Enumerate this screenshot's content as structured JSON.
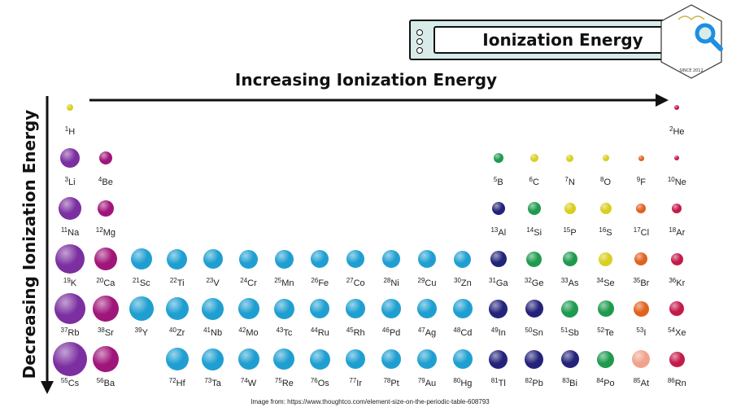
{
  "title": "Ionization Energy",
  "horizontal_arrow_label": "Increasing Ionization Energy",
  "vertical_arrow_label": "Decreasing Ionization Energy",
  "credit": "Image from: https://www.thoughtco.com/element-size-on-the-periodic-table-608793",
  "logo_text": "SINCE 2012",
  "colors": {
    "purple": "#7b2fa0",
    "magenta": "#a0157a",
    "cyan": "#1f9fd1",
    "navy": "#24237a",
    "green": "#1e9a4e",
    "yellow": "#d8cf1f",
    "orange": "#e0621f",
    "crimson": "#c41a4a",
    "peach": "#f0a38c",
    "banner_bg": "#d7ece9",
    "magnifier": "#1f8fe0"
  },
  "elements": [
    {
      "n": "1",
      "s": "H",
      "col": 1,
      "row": 1,
      "r": 4,
      "color": "yellow"
    },
    {
      "n": "2",
      "s": "He",
      "col": 18,
      "row": 1,
      "r": 3,
      "color": "crimson"
    },
    {
      "n": "3",
      "s": "Li",
      "col": 1,
      "row": 2,
      "r": 12,
      "color": "purple"
    },
    {
      "n": "4",
      "s": "Be",
      "col": 2,
      "row": 2,
      "r": 8,
      "color": "magenta"
    },
    {
      "n": "5",
      "s": "B",
      "col": 13,
      "row": 2,
      "r": 6,
      "color": "green"
    },
    {
      "n": "6",
      "s": "C",
      "col": 14,
      "row": 2,
      "r": 5,
      "color": "yellow"
    },
    {
      "n": "7",
      "s": "N",
      "col": 15,
      "row": 2,
      "r": 4.5,
      "color": "yellow"
    },
    {
      "n": "8",
      "s": "O",
      "col": 16,
      "row": 2,
      "r": 4,
      "color": "yellow"
    },
    {
      "n": "9",
      "s": "F",
      "col": 17,
      "row": 2,
      "r": 3.5,
      "color": "orange"
    },
    {
      "n": "10",
      "s": "Ne",
      "col": 18,
      "row": 2,
      "r": 3,
      "color": "crimson"
    },
    {
      "n": "11",
      "s": "Na",
      "col": 1,
      "row": 3,
      "r": 14,
      "color": "purple"
    },
    {
      "n": "12",
      "s": "Mg",
      "col": 2,
      "row": 3,
      "r": 10,
      "color": "magenta"
    },
    {
      "n": "13",
      "s": "Al",
      "col": 13,
      "row": 3,
      "r": 8,
      "color": "navy"
    },
    {
      "n": "14",
      "s": "Si",
      "col": 14,
      "row": 3,
      "r": 8,
      "color": "green"
    },
    {
      "n": "15",
      "s": "P",
      "col": 15,
      "row": 3,
      "r": 7,
      "color": "yellow"
    },
    {
      "n": "16",
      "s": "S",
      "col": 16,
      "row": 3,
      "r": 7,
      "color": "yellow"
    },
    {
      "n": "17",
      "s": "Cl",
      "col": 17,
      "row": 3,
      "r": 6,
      "color": "orange"
    },
    {
      "n": "18",
      "s": "Ar",
      "col": 18,
      "row": 3,
      "r": 6,
      "color": "crimson"
    },
    {
      "n": "19",
      "s": "K",
      "col": 1,
      "row": 4,
      "r": 18,
      "color": "purple"
    },
    {
      "n": "20",
      "s": "Ca",
      "col": 2,
      "row": 4,
      "r": 14,
      "color": "magenta"
    },
    {
      "n": "21",
      "s": "Sc",
      "col": 3,
      "row": 4,
      "r": 13,
      "color": "cyan"
    },
    {
      "n": "22",
      "s": "Ti",
      "col": 4,
      "row": 4,
      "r": 12.5,
      "color": "cyan"
    },
    {
      "n": "23",
      "s": "V",
      "col": 5,
      "row": 4,
      "r": 12,
      "color": "cyan"
    },
    {
      "n": "24",
      "s": "Cr",
      "col": 6,
      "row": 4,
      "r": 11.5,
      "color": "cyan"
    },
    {
      "n": "25",
      "s": "Mn",
      "col": 7,
      "row": 4,
      "r": 11.5,
      "color": "cyan"
    },
    {
      "n": "26",
      "s": "Fe",
      "col": 8,
      "row": 4,
      "r": 11,
      "color": "cyan"
    },
    {
      "n": "27",
      "s": "Co",
      "col": 9,
      "row": 4,
      "r": 11,
      "color": "cyan"
    },
    {
      "n": "28",
      "s": "Ni",
      "col": 10,
      "row": 4,
      "r": 11,
      "color": "cyan"
    },
    {
      "n": "29",
      "s": "Cu",
      "col": 11,
      "row": 4,
      "r": 11,
      "color": "cyan"
    },
    {
      "n": "30",
      "s": "Zn",
      "col": 12,
      "row": 4,
      "r": 10.5,
      "color": "cyan"
    },
    {
      "n": "31",
      "s": "Ga",
      "col": 13,
      "row": 4,
      "r": 10,
      "color": "navy"
    },
    {
      "n": "32",
      "s": "Ge",
      "col": 14,
      "row": 4,
      "r": 9.5,
      "color": "green"
    },
    {
      "n": "33",
      "s": "As",
      "col": 15,
      "row": 4,
      "r": 9,
      "color": "green"
    },
    {
      "n": "34",
      "s": "Se",
      "col": 16,
      "row": 4,
      "r": 8.5,
      "color": "yellow"
    },
    {
      "n": "35",
      "s": "Br",
      "col": 17,
      "row": 4,
      "r": 8,
      "color": "orange"
    },
    {
      "n": "36",
      "s": "Kr",
      "col": 18,
      "row": 4,
      "r": 7.5,
      "color": "crimson"
    },
    {
      "n": "37",
      "s": "Rb",
      "col": 1,
      "row": 5,
      "r": 19,
      "color": "purple"
    },
    {
      "n": "38",
      "s": "Sr",
      "col": 2,
      "row": 5,
      "r": 16,
      "color": "magenta"
    },
    {
      "n": "39",
      "s": "Y",
      "col": 3,
      "row": 5,
      "r": 15,
      "color": "cyan"
    },
    {
      "n": "40",
      "s": "Zr",
      "col": 4,
      "row": 5,
      "r": 14,
      "color": "cyan"
    },
    {
      "n": "41",
      "s": "Nb",
      "col": 5,
      "row": 5,
      "r": 13.5,
      "color": "cyan"
    },
    {
      "n": "42",
      "s": "Mo",
      "col": 6,
      "row": 5,
      "r": 13,
      "color": "cyan"
    },
    {
      "n": "43",
      "s": "Tc",
      "col": 7,
      "row": 5,
      "r": 12.5,
      "color": "cyan"
    },
    {
      "n": "44",
      "s": "Ru",
      "col": 8,
      "row": 5,
      "r": 12,
      "color": "cyan"
    },
    {
      "n": "45",
      "s": "Rh",
      "col": 9,
      "row": 5,
      "r": 12,
      "color": "cyan"
    },
    {
      "n": "46",
      "s": "Pd",
      "col": 10,
      "row": 5,
      "r": 12,
      "color": "cyan"
    },
    {
      "n": "47",
      "s": "Ag",
      "col": 11,
      "row": 5,
      "r": 12,
      "color": "cyan"
    },
    {
      "n": "48",
      "s": "Cd",
      "col": 12,
      "row": 5,
      "r": 12,
      "color": "cyan"
    },
    {
      "n": "49",
      "s": "In",
      "col": 13,
      "row": 5,
      "r": 11.5,
      "color": "navy"
    },
    {
      "n": "50",
      "s": "Sn",
      "col": 14,
      "row": 5,
      "r": 11,
      "color": "navy"
    },
    {
      "n": "51",
      "s": "Sb",
      "col": 15,
      "row": 5,
      "r": 10.5,
      "color": "green"
    },
    {
      "n": "52",
      "s": "Te",
      "col": 16,
      "row": 5,
      "r": 10,
      "color": "green"
    },
    {
      "n": "53",
      "s": "I",
      "col": 17,
      "row": 5,
      "r": 9.5,
      "color": "orange"
    },
    {
      "n": "54",
      "s": "Xe",
      "col": 18,
      "row": 5,
      "r": 9,
      "color": "crimson"
    },
    {
      "n": "55",
      "s": "Cs",
      "col": 1,
      "row": 6,
      "r": 21,
      "color": "purple"
    },
    {
      "n": "56",
      "s": "Ba",
      "col": 2,
      "row": 6,
      "r": 16,
      "color": "magenta"
    },
    {
      "n": "72",
      "s": "Hf",
      "col": 4,
      "row": 6,
      "r": 14,
      "color": "cyan"
    },
    {
      "n": "73",
      "s": "Ta",
      "col": 5,
      "row": 6,
      "r": 13.5,
      "color": "cyan"
    },
    {
      "n": "74",
      "s": "W",
      "col": 6,
      "row": 6,
      "r": 13,
      "color": "cyan"
    },
    {
      "n": "75",
      "s": "Re",
      "col": 7,
      "row": 6,
      "r": 13,
      "color": "cyan"
    },
    {
      "n": "76",
      "s": "Os",
      "col": 8,
      "row": 6,
      "r": 12.5,
      "color": "cyan"
    },
    {
      "n": "77",
      "s": "Ir",
      "col": 9,
      "row": 6,
      "r": 12,
      "color": "cyan"
    },
    {
      "n": "78",
      "s": "Pt",
      "col": 10,
      "row": 6,
      "r": 12,
      "color": "cyan"
    },
    {
      "n": "79",
      "s": "Au",
      "col": 11,
      "row": 6,
      "r": 12,
      "color": "cyan"
    },
    {
      "n": "80",
      "s": "Hg",
      "col": 12,
      "row": 6,
      "r": 12,
      "color": "cyan"
    },
    {
      "n": "81",
      "s": "Tl",
      "col": 13,
      "row": 6,
      "r": 11.5,
      "color": "navy"
    },
    {
      "n": "82",
      "s": "Pb",
      "col": 14,
      "row": 6,
      "r": 11.5,
      "color": "navy"
    },
    {
      "n": "83",
      "s": "Bi",
      "col": 15,
      "row": 6,
      "r": 11,
      "color": "navy"
    },
    {
      "n": "84",
      "s": "Po",
      "col": 16,
      "row": 6,
      "r": 10.5,
      "color": "green"
    },
    {
      "n": "85",
      "s": "At",
      "col": 17,
      "row": 6,
      "r": 11,
      "color": "peach"
    },
    {
      "n": "86",
      "s": "Rn",
      "col": 18,
      "row": 6,
      "r": 9.5,
      "color": "crimson"
    }
  ]
}
